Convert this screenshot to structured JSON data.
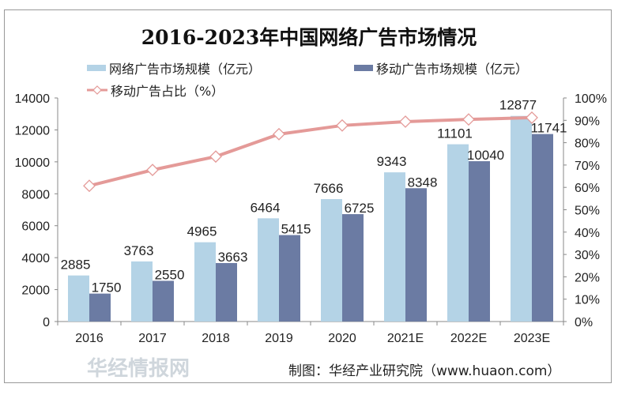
{
  "chart_data": {
    "type": "bar+line",
    "title": "2016-2023年中国网络广告市场情况",
    "categories": [
      "2016",
      "2017",
      "2018",
      "2019",
      "2020",
      "2021E",
      "2022E",
      "2023E"
    ],
    "series": [
      {
        "name": "网络广告市场规模（亿元）",
        "type": "bar",
        "axis": "left",
        "color": "#b4d3e6",
        "values": [
          2885,
          3763,
          4965,
          6464,
          7666,
          9343,
          11101,
          12877
        ]
      },
      {
        "name": "移动广告市场规模（亿元）",
        "type": "bar",
        "axis": "left",
        "color": "#6b7ba3",
        "values": [
          1750,
          2550,
          3663,
          5415,
          6725,
          8348,
          10040,
          11741
        ]
      },
      {
        "name": "移动广告占比（%）",
        "type": "line",
        "axis": "right",
        "color": "#e49a98",
        "values": [
          60.7,
          67.8,
          73.8,
          83.8,
          87.7,
          89.4,
          90.4,
          91.2
        ]
      }
    ],
    "left_axis": {
      "ylim": [
        0,
        14000
      ],
      "ticks": [
        "0",
        "2000",
        "4000",
        "6000",
        "8000",
        "10000",
        "12000",
        "14000"
      ]
    },
    "right_axis": {
      "ylim": [
        0,
        100
      ],
      "ticks": [
        "0%",
        "10%",
        "20%",
        "30%",
        "40%",
        "50%",
        "60%",
        "70%",
        "80%",
        "90%",
        "100%"
      ]
    },
    "grid": false,
    "legend_position": "top"
  },
  "footer": "制图：华经产业研究院（www.huaon.com）",
  "watermark": "华经情报网"
}
